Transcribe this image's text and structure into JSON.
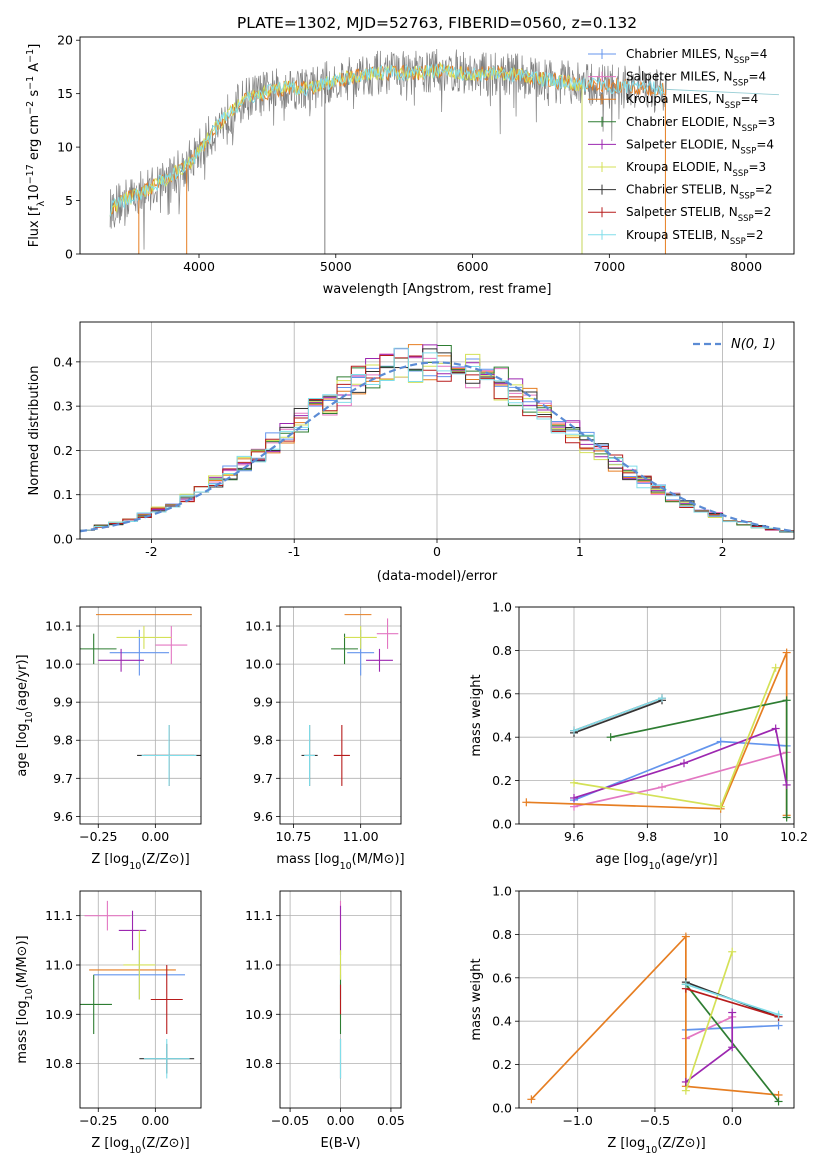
{
  "figure": {
    "title": "PLATE=1302, MJD=52763, FIBERID=0560, z=0.132"
  },
  "legend": {
    "entries": [
      {
        "label": "Chabrier MILES, N",
        "sub": "SSP",
        "tail": "=4",
        "color": "#6495ed"
      },
      {
        "label": "Salpeter MILES, N",
        "sub": "SSP",
        "tail": "=4",
        "color": "#e377c2"
      },
      {
        "label": "Kroupa MILES, N",
        "sub": "SSP",
        "tail": "=4",
        "color": "#e67e22"
      },
      {
        "label": "Chabrier ELODIE, N",
        "sub": "SSP",
        "tail": "=3",
        "color": "#2e7d32"
      },
      {
        "label": "Salpeter ELODIE, N",
        "sub": "SSP",
        "tail": "=4",
        "color": "#9c27b0"
      },
      {
        "label": "Kroupa ELODIE, N",
        "sub": "SSP",
        "tail": "=3",
        "color": "#d4e157"
      },
      {
        "label": "Chabrier STELIB, N",
        "sub": "SSP",
        "tail": "=2",
        "color": "#333333"
      },
      {
        "label": "Salpeter STELIB, N",
        "sub": "SSP",
        "tail": "=2",
        "color": "#b71c1c"
      },
      {
        "label": "Kroupa STELIB, N",
        "sub": "SSP",
        "tail": "=2",
        "color": "#80deea"
      }
    ],
    "hist_label": "ɴ(0, 1)",
    "hist_label_math": "N(0, 1)"
  },
  "chart_data": [
    {
      "id": "spectrum",
      "type": "line",
      "xlabel": "wavelength [Angstrom, rest frame]",
      "ylabel_parts": [
        "Flux [f",
        "λ",
        "10",
        "−17",
        " erg cm",
        "−2",
        " s",
        "−1",
        " A",
        "−1",
        "]"
      ],
      "xlim": [
        3130,
        8350
      ],
      "ylim": [
        0,
        20.3
      ],
      "xticks": [
        4000,
        5000,
        6000,
        7000,
        8000
      ],
      "yticks": [
        0,
        5,
        10,
        15,
        20
      ],
      "envelope": {
        "x": [
          3350,
          3450,
          3550,
          3650,
          3750,
          3850,
          3950,
          4050,
          4150,
          4250,
          4350,
          4500,
          4650,
          4800,
          5000,
          5200,
          5400,
          5600,
          5800,
          6000,
          6200,
          6400,
          6600,
          6800,
          7000,
          7200,
          7400
        ],
        "y": [
          4.2,
          5.0,
          5.6,
          6.2,
          7.0,
          7.8,
          8.8,
          10.5,
          12.2,
          13.5,
          14.6,
          15.1,
          15.6,
          15.5,
          16.2,
          16.8,
          17.0,
          16.9,
          17.2,
          16.8,
          17.0,
          16.6,
          16.2,
          15.8,
          15.7,
          15.6,
          15.4
        ]
      },
      "drops": [
        3560,
        3910,
        4920,
        6800,
        7410
      ]
    },
    {
      "id": "residual-hist",
      "type": "bar",
      "xlabel": "(data-model)/error",
      "ylabel": "Normed distribution",
      "xlim": [
        -2.5,
        2.5
      ],
      "ylim": [
        0,
        0.49
      ],
      "xticks": [
        -2,
        -1,
        0,
        1,
        2
      ],
      "yticks": [
        0.0,
        0.1,
        0.2,
        0.3,
        0.4
      ],
      "bins": {
        "start": -2.5,
        "width": 0.1,
        "count": 50
      },
      "curve": {
        "name": "ɴ(0, 1)",
        "mean": 0,
        "sigma": 1
      }
    },
    {
      "id": "age-vs-Z",
      "type": "scatter",
      "xlabel_parts": [
        "Z [log",
        "10",
        "(Z/Z",
        "⊙",
        ")]"
      ],
      "ylabel_parts": [
        "age  [log",
        "10",
        "(age/yr)]"
      ],
      "xlim": [
        -0.33,
        0.2
      ],
      "ylim": [
        9.58,
        10.15
      ],
      "xticks": [
        -0.25,
        0.0
      ],
      "xtick_labels": [
        "−0.25",
        "0.00"
      ],
      "yticks": [
        9.6,
        9.7,
        9.8,
        9.9,
        10.0,
        10.1
      ],
      "points": [
        {
          "x": -0.07,
          "y": 10.03,
          "xe": 0.13,
          "ye": 0.06
        },
        {
          "x": 0.07,
          "y": 10.05,
          "xe": 0.07,
          "ye": 0.05
        },
        {
          "x": -0.05,
          "y": 10.13,
          "xe": 0.21,
          "ye": 0.0
        },
        {
          "x": -0.27,
          "y": 10.04,
          "xe": 0.1,
          "ye": 0.04
        },
        {
          "x": -0.15,
          "y": 10.01,
          "xe": 0.1,
          "ye": 0.03
        },
        {
          "x": -0.05,
          "y": 10.07,
          "xe": 0.12,
          "ye": 0.03
        },
        {
          "x": 0.06,
          "y": 9.76,
          "xe": 0.14,
          "ye": 0.08
        },
        {
          "x": 0.06,
          "y": 9.76,
          "xe": 0.11,
          "ye": 0.08
        },
        {
          "x": 0.06,
          "y": 9.76,
          "xe": 0.12,
          "ye": 0.08
        }
      ]
    },
    {
      "id": "age-vs-mass",
      "type": "scatter",
      "xlabel_parts": [
        "mass [log",
        "10",
        "(M/M",
        "⊙",
        ")]"
      ],
      "ylabel_parts": [],
      "xlim": [
        10.7,
        11.15
      ],
      "ylim": [
        9.58,
        10.15
      ],
      "xticks": [
        10.75,
        11.0
      ],
      "xtick_labels": [
        "10.75",
        "11.00"
      ],
      "yticks": [
        9.6,
        9.7,
        9.8,
        9.9,
        10.0,
        10.1
      ],
      "points": [
        {
          "x": 11.0,
          "y": 10.03,
          "xe": 0.05,
          "ye": 0.06
        },
        {
          "x": 11.1,
          "y": 10.08,
          "xe": 0.04,
          "ye": 0.04
        },
        {
          "x": 10.99,
          "y": 10.13,
          "xe": 0.05,
          "ye": 0.0
        },
        {
          "x": 10.94,
          "y": 10.04,
          "xe": 0.05,
          "ye": 0.04
        },
        {
          "x": 11.07,
          "y": 10.01,
          "xe": 0.05,
          "ye": 0.03
        },
        {
          "x": 11.0,
          "y": 10.07,
          "xe": 0.06,
          "ye": 0.03
        },
        {
          "x": 10.81,
          "y": 9.76,
          "xe": 0.03,
          "ye": 0.08
        },
        {
          "x": 10.93,
          "y": 9.76,
          "xe": 0.03,
          "ye": 0.08
        },
        {
          "x": 10.81,
          "y": 9.76,
          "xe": 0.02,
          "ye": 0.08
        }
      ]
    },
    {
      "id": "massweight-vs-age",
      "type": "line",
      "xlabel_parts": [
        "age  [log",
        "10",
        "(age/yr)]"
      ],
      "ylabel": "mass weight",
      "xlim": [
        9.45,
        10.2
      ],
      "ylim": [
        0,
        1
      ],
      "xticks": [
        9.6,
        9.8,
        10.0,
        10.2
      ],
      "yticks": [
        0.0,
        0.2,
        0.4,
        0.6,
        0.8,
        1.0
      ],
      "series": [
        {
          "x": [
            9.6,
            10.0,
            10.18
          ],
          "y": [
            0.11,
            0.38,
            0.36
          ]
        },
        {
          "x": [
            9.6,
            9.84,
            10.18
          ],
          "y": [
            0.08,
            0.17,
            0.33
          ]
        },
        {
          "x": [
            9.47,
            10.0,
            10.18,
            10.18
          ],
          "y": [
            0.1,
            0.07,
            0.79,
            0.04
          ]
        },
        {
          "x": [
            9.7,
            10.18,
            10.18
          ],
          "y": [
            0.4,
            0.57,
            0.03
          ]
        },
        {
          "x": [
            9.6,
            9.9,
            10.15,
            10.18
          ],
          "y": [
            0.12,
            0.28,
            0.44,
            0.18
          ]
        },
        {
          "x": [
            9.6,
            10.0,
            10.15
          ],
          "y": [
            0.19,
            0.08,
            0.72
          ]
        },
        {
          "x": [
            9.6,
            9.84
          ],
          "y": [
            0.42,
            0.57
          ]
        },
        {
          "x": [
            9.6,
            9.84
          ],
          "y": [
            0.43,
            0.58
          ]
        },
        {
          "x": [
            9.6,
            9.84
          ],
          "y": [
            0.43,
            0.58
          ]
        }
      ]
    },
    {
      "id": "mass-vs-Z",
      "type": "scatter",
      "xlabel_parts": [
        "Z [log",
        "10",
        "(Z/Z",
        "⊙",
        ")]"
      ],
      "ylabel_parts": [
        "mass [log",
        "10",
        "(M/M",
        "⊙",
        ")]"
      ],
      "xlim": [
        -0.33,
        0.2
      ],
      "ylim": [
        10.71,
        11.15
      ],
      "xticks": [
        -0.25,
        0.0
      ],
      "xtick_labels": [
        "−0.25",
        "0.00"
      ],
      "yticks": [
        10.8,
        10.9,
        11.0,
        11.1
      ],
      "points": [
        {
          "x": -0.07,
          "y": 10.98,
          "xe": 0.2,
          "ye": 0.05
        },
        {
          "x": -0.21,
          "y": 11.1,
          "xe": 0.1,
          "ye": 0.03
        },
        {
          "x": -0.1,
          "y": 10.99,
          "xe": 0.19,
          "ye": 0.0
        },
        {
          "x": -0.27,
          "y": 10.92,
          "xe": 0.08,
          "ye": 0.06
        },
        {
          "x": -0.1,
          "y": 11.07,
          "xe": 0.06,
          "ye": 0.04
        },
        {
          "x": -0.07,
          "y": 11.0,
          "xe": 0.07,
          "ye": 0.07
        },
        {
          "x": 0.05,
          "y": 10.81,
          "xe": 0.12,
          "ye": 0.03
        },
        {
          "x": 0.05,
          "y": 10.93,
          "xe": 0.07,
          "ye": 0.07
        },
        {
          "x": 0.05,
          "y": 10.81,
          "xe": 0.1,
          "ye": 0.04
        }
      ]
    },
    {
      "id": "mass-vs-ebv",
      "type": "scatter",
      "xlabel": "E(B-V)",
      "xlim": [
        -0.06,
        0.06
      ],
      "ylim": [
        10.71,
        11.15
      ],
      "xticks": [
        -0.05,
        0.0,
        0.05
      ],
      "xtick_labels": [
        "−0.05",
        "0.00",
        "0.05"
      ],
      "yticks": [
        10.8,
        10.9,
        11.0,
        11.1
      ],
      "points": [
        {
          "x": 0,
          "y": 10.98,
          "xe": 0,
          "ye": 0.05
        },
        {
          "x": 0,
          "y": 11.1,
          "xe": 0,
          "ye": 0.03
        },
        {
          "x": 0,
          "y": 10.99,
          "xe": 0,
          "ye": 0.01
        },
        {
          "x": 0,
          "y": 10.92,
          "xe": 0,
          "ye": 0.06
        },
        {
          "x": 0,
          "y": 11.07,
          "xe": 0,
          "ye": 0.05
        },
        {
          "x": 0,
          "y": 11.0,
          "xe": 0,
          "ye": 0.03
        },
        {
          "x": 0,
          "y": 10.81,
          "xe": 0,
          "ye": 0.04
        },
        {
          "x": 0,
          "y": 10.93,
          "xe": 0,
          "ye": 0.03
        },
        {
          "x": 0,
          "y": 10.81,
          "xe": 0,
          "ye": 0.04
        }
      ]
    },
    {
      "id": "massweight-vs-Z",
      "type": "line",
      "xlabel_parts": [
        "Z [log",
        "10",
        "(Z/Z",
        "⊙",
        ")]"
      ],
      "ylabel": "mass weight",
      "xlim": [
        -1.38,
        0.4
      ],
      "ylim": [
        0,
        1
      ],
      "xticks": [
        -1.0,
        -0.5,
        0.0
      ],
      "xtick_labels": [
        "−1.0",
        "−0.5",
        "0.0"
      ],
      "yticks": [
        0.0,
        0.2,
        0.4,
        0.6,
        0.8,
        1.0
      ],
      "series": [
        {
          "x": [
            -0.3,
            0.3
          ],
          "y": [
            0.36,
            0.38
          ]
        },
        {
          "x": [
            -0.3,
            0.0
          ],
          "y": [
            0.32,
            0.42
          ]
        },
        {
          "x": [
            -1.3,
            -0.3,
            -0.3,
            0.3
          ],
          "y": [
            0.04,
            0.79,
            0.1,
            0.06
          ]
        },
        {
          "x": [
            -0.3,
            0.3
          ],
          "y": [
            0.57,
            0.03
          ]
        },
        {
          "x": [
            -0.3,
            0.0,
            0.0
          ],
          "y": [
            0.12,
            0.28,
            0.44
          ]
        },
        {
          "x": [
            -0.3,
            0.0
          ],
          "y": [
            0.08,
            0.72
          ]
        },
        {
          "x": [
            -0.3,
            0.3
          ],
          "y": [
            0.58,
            0.42
          ]
        },
        {
          "x": [
            -0.3,
            0.3
          ],
          "y": [
            0.55,
            0.42
          ]
        },
        {
          "x": [
            -0.3,
            0.3
          ],
          "y": [
            0.57,
            0.43
          ]
        }
      ]
    }
  ]
}
